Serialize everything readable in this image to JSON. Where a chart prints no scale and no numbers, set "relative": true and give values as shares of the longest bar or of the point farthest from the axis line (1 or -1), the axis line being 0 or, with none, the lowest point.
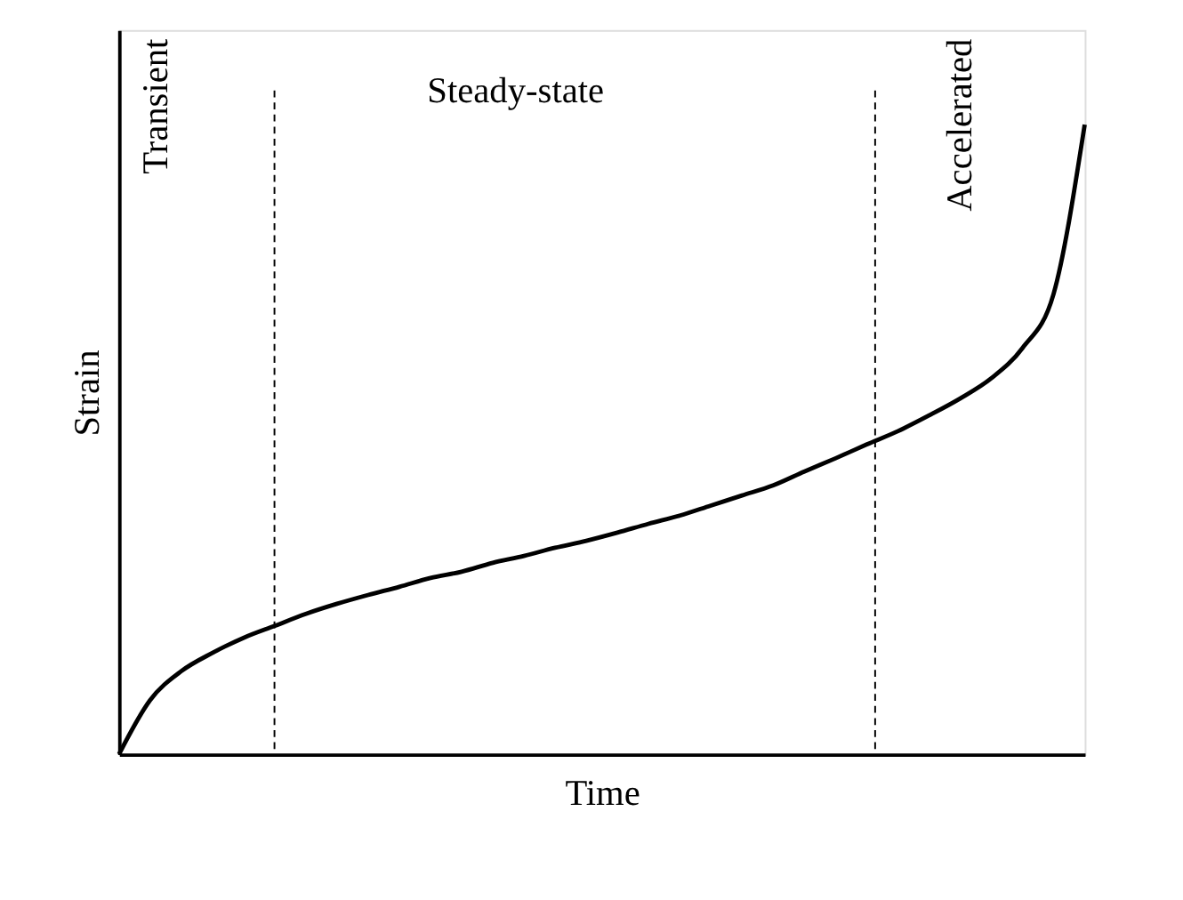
{
  "chart_data": {
    "type": "line",
    "relative": true,
    "xlabel": "Time",
    "ylabel": "Strain",
    "categories": [
      null,
      null,
      null,
      null,
      null,
      null,
      null,
      null,
      null,
      null,
      null,
      null,
      null,
      null,
      null,
      null,
      null,
      null,
      null,
      null,
      null,
      null,
      null,
      null,
      null,
      null,
      null,
      null,
      null,
      null,
      null,
      null
    ],
    "series": [
      {
        "color": "#000000",
        "values": [
          0,
          0.086,
          0.132,
          0.161,
          0.185,
          0.204,
          0.223,
          0.239,
          0.253,
          0.266,
          0.28,
          0.29,
          0.304,
          0.315,
          0.328,
          0.339,
          0.352,
          0.366,
          0.379,
          0.395,
          0.411,
          0.427,
          0.449,
          0.47,
          0.492,
          0.513,
          0.538,
          0.565,
          0.597,
          0.645,
          0.731,
          1.0
        ]
      }
    ],
    "annotations": [
      "Transient",
      "Steady-state",
      "Accelerated"
    ],
    "grid": false,
    "marker": "none",
    "line_style": "solid"
  }
}
